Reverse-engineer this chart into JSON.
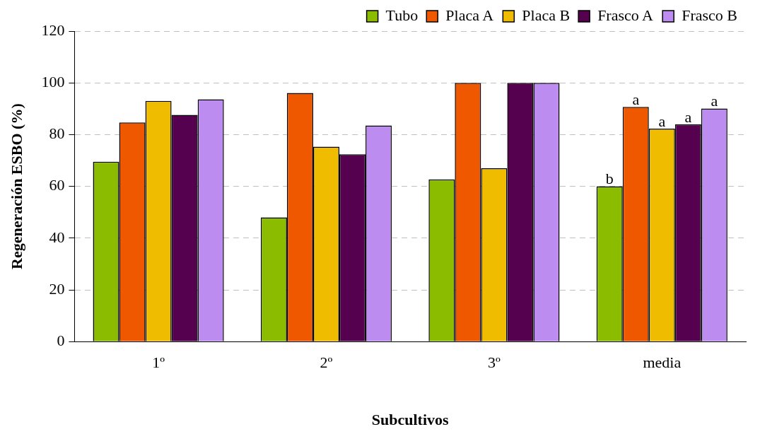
{
  "chart_data": {
    "type": "bar",
    "xlabel": "Subcultivos",
    "ylabel": "Regeneración ESBO (%)",
    "categories": [
      "1º",
      "2º",
      "3º",
      "media"
    ],
    "series": [
      {
        "name": "Tubo",
        "color": "#8cbc00",
        "values": [
          69.5,
          48,
          62.7,
          60
        ],
        "value_labels": [
          null,
          null,
          null,
          "b"
        ]
      },
      {
        "name": "Placa A",
        "color": "#f05800",
        "values": [
          84.7,
          96.1,
          100,
          90.7
        ],
        "value_labels": [
          null,
          null,
          null,
          "a"
        ]
      },
      {
        "name": "Placa B",
        "color": "#f0bc00",
        "values": [
          93,
          75.3,
          67,
          82.3
        ],
        "value_labels": [
          null,
          null,
          null,
          "a"
        ]
      },
      {
        "name": "Frasco A",
        "color": "#560050",
        "values": [
          87.6,
          72.4,
          100,
          84
        ],
        "value_labels": [
          null,
          null,
          null,
          "a"
        ]
      },
      {
        "name": "Frasco B",
        "color": "#bc8cf0",
        "values": [
          93.6,
          83.5,
          100,
          90.1
        ],
        "value_labels": [
          null,
          null,
          null,
          "a"
        ]
      }
    ],
    "ylim": [
      0,
      120
    ],
    "yticks": [
      0,
      20,
      40,
      60,
      80,
      100,
      120
    ],
    "grid": "y",
    "legend": "top right"
  }
}
